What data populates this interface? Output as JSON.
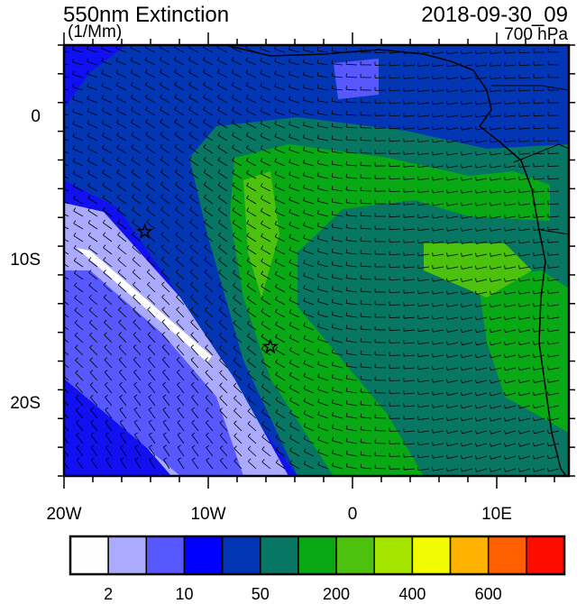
{
  "header": {
    "title": "550nm Extinction",
    "units": "(1/Mm)",
    "date": "2018-09-30_09",
    "level": "700 hPa"
  },
  "map": {
    "lon_range": [
      -20,
      15
    ],
    "lat_range": [
      -25,
      5
    ],
    "lon_ticks": [
      {
        "value": -20,
        "label": "20W"
      },
      {
        "value": -10,
        "label": "10W"
      },
      {
        "value": 0,
        "label": "0"
      },
      {
        "value": 10,
        "label": "10E"
      }
    ],
    "lat_ticks": [
      {
        "value": 0,
        "label": "0"
      },
      {
        "value": -10,
        "label": "10S"
      },
      {
        "value": -20,
        "label": "20S"
      }
    ],
    "markers": [
      {
        "type": "star",
        "lon": -14.4,
        "lat": -8.0
      },
      {
        "type": "star",
        "lon": -5.7,
        "lat": -16.0
      }
    ],
    "overlay": "wind-barbs"
  },
  "colorbar": {
    "colors": [
      "#fefefe",
      "#aaaaff",
      "#5858ff",
      "#0000ff",
      "#0336b5",
      "#077763",
      "#08a915",
      "#4cc20e",
      "#a5e500",
      "#f3fb00",
      "#ffb300",
      "#ff5f00",
      "#ff0c00"
    ],
    "labels": [
      "2",
      "10",
      "50",
      "200",
      "400",
      "600"
    ]
  }
}
